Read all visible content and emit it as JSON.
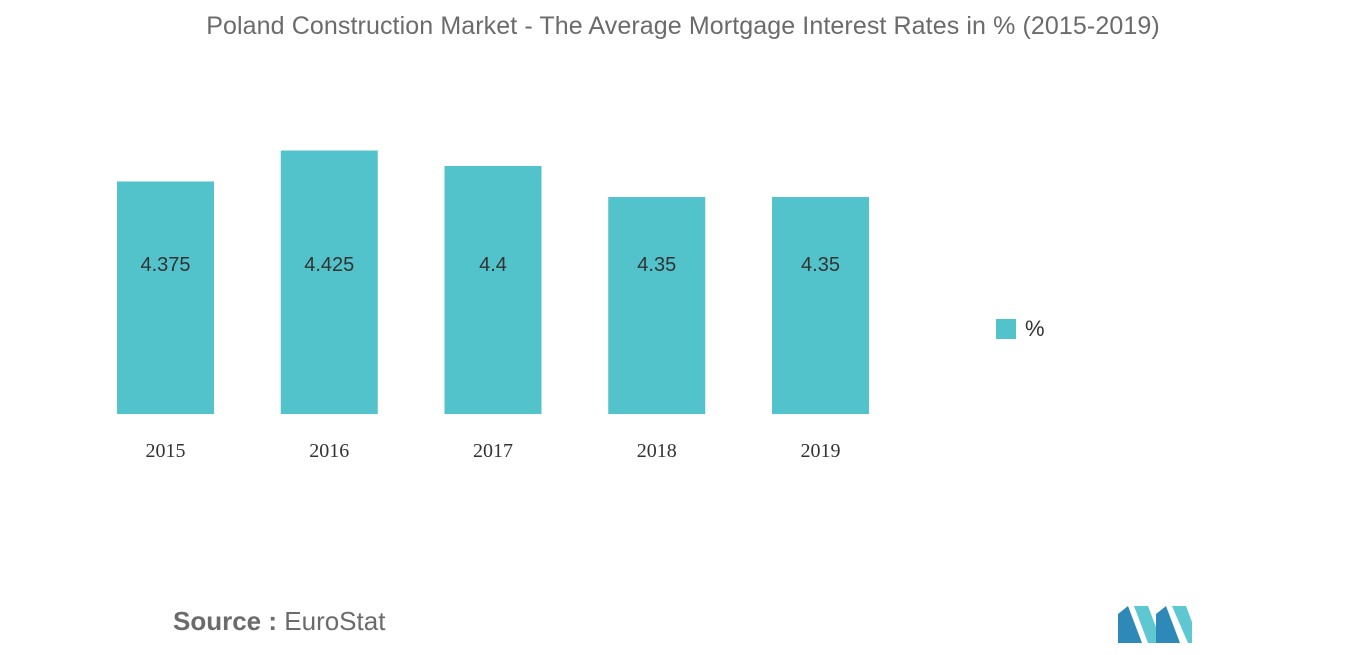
{
  "title": "Poland Construction Market - The Average Mortgage Interest Rates in % (2015-2019)",
  "legend": {
    "label": "%"
  },
  "source": {
    "prefix": "Source :",
    "text": "EuroStat"
  },
  "colors": {
    "bar": "#52c3cb",
    "title": "#6b6b6b",
    "label": "#333333"
  },
  "chart_data": {
    "type": "bar",
    "title": "Poland Construction Market - The Average Mortgage Interest Rates in % (2015-2019)",
    "categories": [
      "2015",
      "2016",
      "2017",
      "2018",
      "2019"
    ],
    "series": [
      {
        "name": "%",
        "values": [
          4.375,
          4.425,
          4.4,
          4.35,
          4.35
        ],
        "labels": [
          "4.375",
          "4.425",
          "4.4",
          "4.35",
          "4.35"
        ]
      }
    ],
    "xlabel": "",
    "ylabel": "",
    "ylim": [
      0,
      4.5
    ],
    "grid": false,
    "legend_position": "right"
  }
}
